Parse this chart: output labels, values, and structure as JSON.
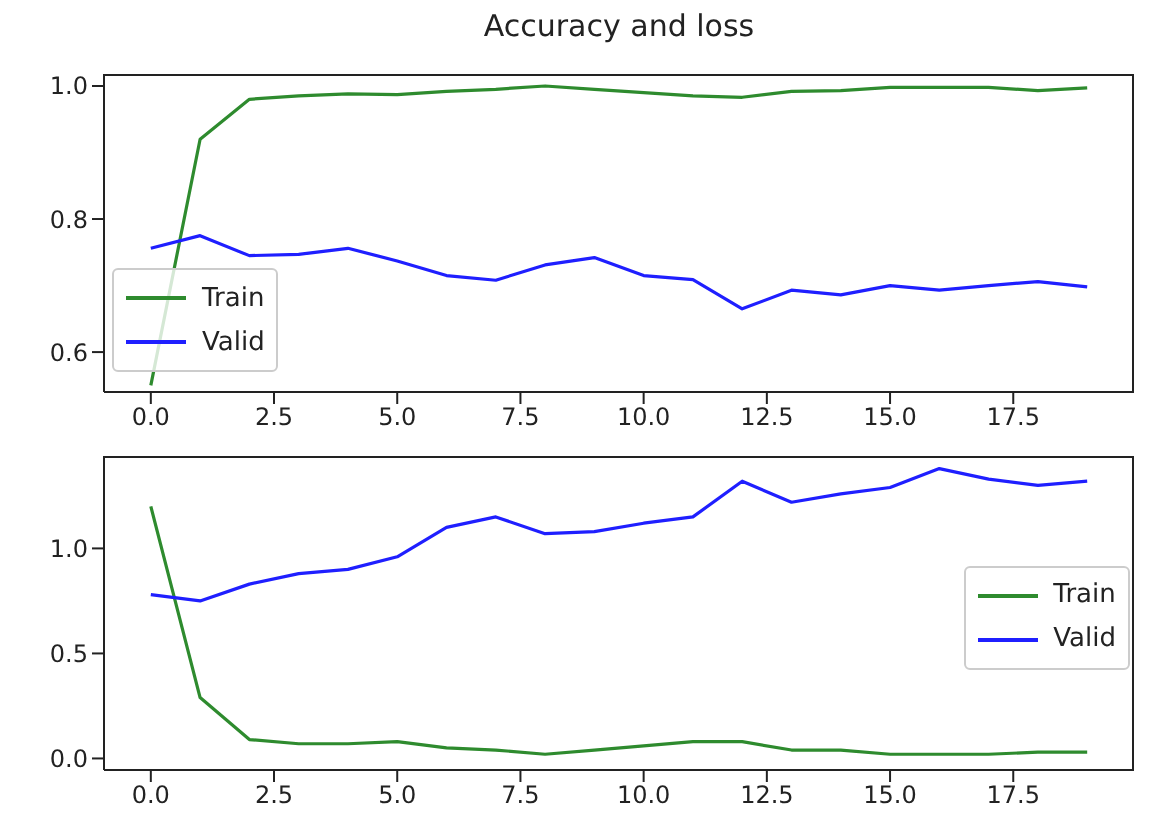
{
  "chart_data": [
    {
      "type": "line",
      "title": "Accuracy and loss",
      "x": [
        0,
        1,
        2,
        3,
        4,
        5,
        6,
        7,
        8,
        9,
        10,
        11,
        12,
        13,
        14,
        15,
        16,
        17,
        18,
        19
      ],
      "series": [
        {
          "name": "Train",
          "color": "#2e8b2e",
          "values": [
            0.55,
            0.92,
            0.98,
            0.985,
            0.988,
            0.987,
            0.992,
            0.995,
            1.0,
            0.995,
            0.99,
            0.985,
            0.983,
            0.992,
            0.993,
            0.998,
            0.998,
            0.998,
            0.993,
            0.997
          ]
        },
        {
          "name": "Valid",
          "color": "#1f1fff",
          "values": [
            0.756,
            0.775,
            0.745,
            0.747,
            0.756,
            0.737,
            0.715,
            0.708,
            0.731,
            0.742,
            0.715,
            0.709,
            0.665,
            0.693,
            0.686,
            0.7,
            0.693,
            0.7,
            0.706,
            0.698
          ]
        }
      ],
      "xlim": [
        -0.95,
        19.95
      ],
      "ylim": [
        0.54,
        1.018
      ],
      "xticks": [
        {
          "value": 0,
          "label": "0.0"
        },
        {
          "value": 2.5,
          "label": "2.5"
        },
        {
          "value": 5,
          "label": "5.0"
        },
        {
          "value": 7.5,
          "label": "7.5"
        },
        {
          "value": 10,
          "label": "10.0"
        },
        {
          "value": 12.5,
          "label": "12.5"
        },
        {
          "value": 15,
          "label": "15.0"
        },
        {
          "value": 17.5,
          "label": "17.5"
        }
      ],
      "yticks": [
        {
          "value": 0.6,
          "label": "0.6"
        },
        {
          "value": 0.8,
          "label": "0.8"
        },
        {
          "value": 1.0,
          "label": "1.0"
        }
      ],
      "legend": "bottom left",
      "marker": "none",
      "line_style": "solid"
    },
    {
      "type": "line",
      "x": [
        0,
        1,
        2,
        3,
        4,
        5,
        6,
        7,
        8,
        9,
        10,
        11,
        12,
        13,
        14,
        15,
        16,
        17,
        18,
        19
      ],
      "series": [
        {
          "name": "Train",
          "color": "#2e8b2e",
          "values": [
            1.2,
            0.29,
            0.09,
            0.07,
            0.07,
            0.08,
            0.05,
            0.04,
            0.02,
            0.04,
            0.06,
            0.08,
            0.08,
            0.04,
            0.04,
            0.02,
            0.02,
            0.02,
            0.03,
            0.03
          ]
        },
        {
          "name": "Valid",
          "color": "#1f1fff",
          "values": [
            0.78,
            0.75,
            0.83,
            0.88,
            0.9,
            0.96,
            1.1,
            1.15,
            1.07,
            1.08,
            1.12,
            1.15,
            1.32,
            1.22,
            1.26,
            1.29,
            1.38,
            1.33,
            1.3,
            1.32
          ]
        }
      ],
      "xlim": [
        -0.95,
        19.95
      ],
      "ylim": [
        -0.055,
        1.44
      ],
      "xticks": [
        {
          "value": 0,
          "label": "0.0"
        },
        {
          "value": 2.5,
          "label": "2.5"
        },
        {
          "value": 5,
          "label": "5.0"
        },
        {
          "value": 7.5,
          "label": "7.5"
        },
        {
          "value": 10,
          "label": "10.0"
        },
        {
          "value": 12.5,
          "label": "12.5"
        },
        {
          "value": 15,
          "label": "15.0"
        },
        {
          "value": 17.5,
          "label": "17.5"
        }
      ],
      "yticks": [
        {
          "value": 0,
          "label": "0.0"
        },
        {
          "value": 0.5,
          "label": "0.5"
        },
        {
          "value": 1.0,
          "label": "1.0"
        }
      ],
      "legend": "right",
      "marker": "none",
      "line_style": "solid"
    }
  ]
}
